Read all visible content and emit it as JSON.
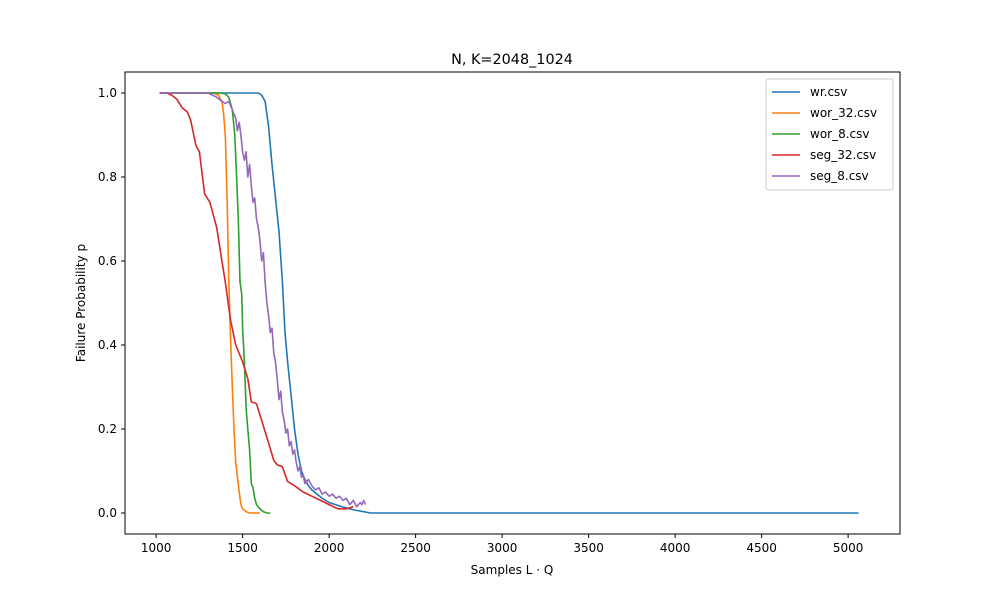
{
  "chart_data": {
    "type": "line",
    "title": "N, K=2048_1024",
    "xlabel": "Samples L · Q",
    "ylabel": "Failure Probability p",
    "xlim": [
      820,
      5300
    ],
    "ylim": [
      -0.05,
      1.05
    ],
    "xticks": [
      1000,
      1500,
      2000,
      2500,
      3000,
      3500,
      4000,
      4500,
      5000
    ],
    "yticks": [
      0.0,
      0.2,
      0.4,
      0.6,
      0.8,
      1.0
    ],
    "ytick_labels": [
      "0.0",
      "0.2",
      "0.4",
      "0.6",
      "0.8",
      "1.0"
    ],
    "grid": false,
    "legend_position": "top-right",
    "series": [
      {
        "name": "wr.csv",
        "color": "#1f77b4",
        "points": [
          [
            1020,
            1.0
          ],
          [
            1150,
            1.0
          ],
          [
            1300,
            1.0
          ],
          [
            1450,
            1.0
          ],
          [
            1590,
            1.0
          ],
          [
            1610,
            0.995
          ],
          [
            1630,
            0.98
          ],
          [
            1650,
            0.92
          ],
          [
            1670,
            0.83
          ],
          [
            1690,
            0.75
          ],
          [
            1710,
            0.67
          ],
          [
            1730,
            0.55
          ],
          [
            1745,
            0.43
          ],
          [
            1760,
            0.36
          ],
          [
            1780,
            0.28
          ],
          [
            1800,
            0.2
          ],
          [
            1820,
            0.14
          ],
          [
            1840,
            0.1
          ],
          [
            1860,
            0.08
          ],
          [
            1880,
            0.065
          ],
          [
            1900,
            0.055
          ],
          [
            1930,
            0.045
          ],
          [
            1960,
            0.035
          ],
          [
            2000,
            0.025
          ],
          [
            2050,
            0.018
          ],
          [
            2100,
            0.012
          ],
          [
            2150,
            0.007
          ],
          [
            2200,
            0.003
          ],
          [
            2240,
            0.0
          ],
          [
            2500,
            0.0
          ],
          [
            3000,
            0.0
          ],
          [
            3500,
            0.0
          ],
          [
            4000,
            0.0
          ],
          [
            4500,
            0.0
          ],
          [
            5060,
            0.0
          ]
        ]
      },
      {
        "name": "wor_32.csv",
        "color": "#ff7f0e",
        "points": [
          [
            1020,
            1.0
          ],
          [
            1200,
            1.0
          ],
          [
            1330,
            1.0
          ],
          [
            1360,
            0.995
          ],
          [
            1380,
            0.98
          ],
          [
            1390,
            0.95
          ],
          [
            1400,
            0.9
          ],
          [
            1410,
            0.75
          ],
          [
            1420,
            0.55
          ],
          [
            1430,
            0.42
          ],
          [
            1440,
            0.3
          ],
          [
            1450,
            0.2
          ],
          [
            1460,
            0.12
          ],
          [
            1480,
            0.05
          ],
          [
            1490,
            0.02
          ],
          [
            1500,
            0.01
          ],
          [
            1520,
            0.003
          ],
          [
            1540,
            0.0
          ],
          [
            1600,
            0.0
          ]
        ]
      },
      {
        "name": "wor_8.csv",
        "color": "#2ca02c",
        "points": [
          [
            1020,
            1.0
          ],
          [
            1200,
            1.0
          ],
          [
            1370,
            1.0
          ],
          [
            1400,
            0.998
          ],
          [
            1420,
            0.99
          ],
          [
            1440,
            0.96
          ],
          [
            1455,
            0.9
          ],
          [
            1465,
            0.8
          ],
          [
            1475,
            0.7
          ],
          [
            1485,
            0.55
          ],
          [
            1495,
            0.52
          ],
          [
            1500,
            0.44
          ],
          [
            1510,
            0.36
          ],
          [
            1520,
            0.25
          ],
          [
            1530,
            0.2
          ],
          [
            1540,
            0.15
          ],
          [
            1550,
            0.07
          ],
          [
            1560,
            0.06
          ],
          [
            1570,
            0.035
          ],
          [
            1580,
            0.02
          ],
          [
            1600,
            0.01
          ],
          [
            1620,
            0.003
          ],
          [
            1640,
            0.0
          ],
          [
            1660,
            0.0
          ]
        ]
      },
      {
        "name": "seg_32.csv",
        "color": "#d62728",
        "points": [
          [
            1020,
            1.0
          ],
          [
            1060,
            1.0
          ],
          [
            1090,
            0.995
          ],
          [
            1120,
            0.985
          ],
          [
            1150,
            0.965
          ],
          [
            1180,
            0.955
          ],
          [
            1200,
            0.935
          ],
          [
            1230,
            0.875
          ],
          [
            1250,
            0.86
          ],
          [
            1280,
            0.76
          ],
          [
            1310,
            0.74
          ],
          [
            1350,
            0.68
          ],
          [
            1380,
            0.6
          ],
          [
            1400,
            0.55
          ],
          [
            1430,
            0.46
          ],
          [
            1460,
            0.4
          ],
          [
            1500,
            0.36
          ],
          [
            1530,
            0.32
          ],
          [
            1550,
            0.265
          ],
          [
            1580,
            0.26
          ],
          [
            1610,
            0.22
          ],
          [
            1640,
            0.18
          ],
          [
            1680,
            0.125
          ],
          [
            1700,
            0.115
          ],
          [
            1730,
            0.11
          ],
          [
            1760,
            0.075
          ],
          [
            1800,
            0.065
          ],
          [
            1850,
            0.05
          ],
          [
            1900,
            0.04
          ],
          [
            1950,
            0.03
          ],
          [
            2000,
            0.02
          ],
          [
            2050,
            0.01
          ],
          [
            2100,
            0.01
          ],
          [
            2140,
            0.015
          ]
        ]
      },
      {
        "name": "seg_8.csv",
        "color": "#9467bd",
        "points": [
          [
            1020,
            1.0
          ],
          [
            1100,
            1.0
          ],
          [
            1200,
            1.0
          ],
          [
            1300,
            1.0
          ],
          [
            1350,
            0.99
          ],
          [
            1380,
            0.98
          ],
          [
            1400,
            0.975
          ],
          [
            1420,
            0.98
          ],
          [
            1440,
            0.96
          ],
          [
            1460,
            0.94
          ],
          [
            1470,
            0.91
          ],
          [
            1480,
            0.93
          ],
          [
            1490,
            0.9
          ],
          [
            1500,
            0.86
          ],
          [
            1510,
            0.84
          ],
          [
            1520,
            0.86
          ],
          [
            1530,
            0.8
          ],
          [
            1540,
            0.83
          ],
          [
            1550,
            0.78
          ],
          [
            1560,
            0.74
          ],
          [
            1570,
            0.75
          ],
          [
            1580,
            0.7
          ],
          [
            1590,
            0.68
          ],
          [
            1600,
            0.65
          ],
          [
            1610,
            0.6
          ],
          [
            1620,
            0.62
          ],
          [
            1630,
            0.55
          ],
          [
            1640,
            0.5
          ],
          [
            1650,
            0.47
          ],
          [
            1660,
            0.43
          ],
          [
            1670,
            0.44
          ],
          [
            1680,
            0.38
          ],
          [
            1690,
            0.36
          ],
          [
            1700,
            0.32
          ],
          [
            1710,
            0.27
          ],
          [
            1720,
            0.29
          ],
          [
            1730,
            0.24
          ],
          [
            1740,
            0.22
          ],
          [
            1750,
            0.19
          ],
          [
            1760,
            0.2
          ],
          [
            1770,
            0.16
          ],
          [
            1780,
            0.17
          ],
          [
            1790,
            0.14
          ],
          [
            1800,
            0.15
          ],
          [
            1810,
            0.12
          ],
          [
            1820,
            0.1
          ],
          [
            1830,
            0.11
          ],
          [
            1840,
            0.085
          ],
          [
            1850,
            0.09
          ],
          [
            1860,
            0.07
          ],
          [
            1880,
            0.08
          ],
          [
            1900,
            0.065
          ],
          [
            1920,
            0.055
          ],
          [
            1940,
            0.06
          ],
          [
            1960,
            0.045
          ],
          [
            1980,
            0.05
          ],
          [
            2000,
            0.04
          ],
          [
            2020,
            0.045
          ],
          [
            2040,
            0.035
          ],
          [
            2060,
            0.04
          ],
          [
            2080,
            0.03
          ],
          [
            2100,
            0.035
          ],
          [
            2120,
            0.02
          ],
          [
            2140,
            0.03
          ],
          [
            2160,
            0.015
          ],
          [
            2180,
            0.025
          ],
          [
            2190,
            0.02
          ],
          [
            2200,
            0.03
          ],
          [
            2210,
            0.02
          ]
        ]
      }
    ]
  }
}
